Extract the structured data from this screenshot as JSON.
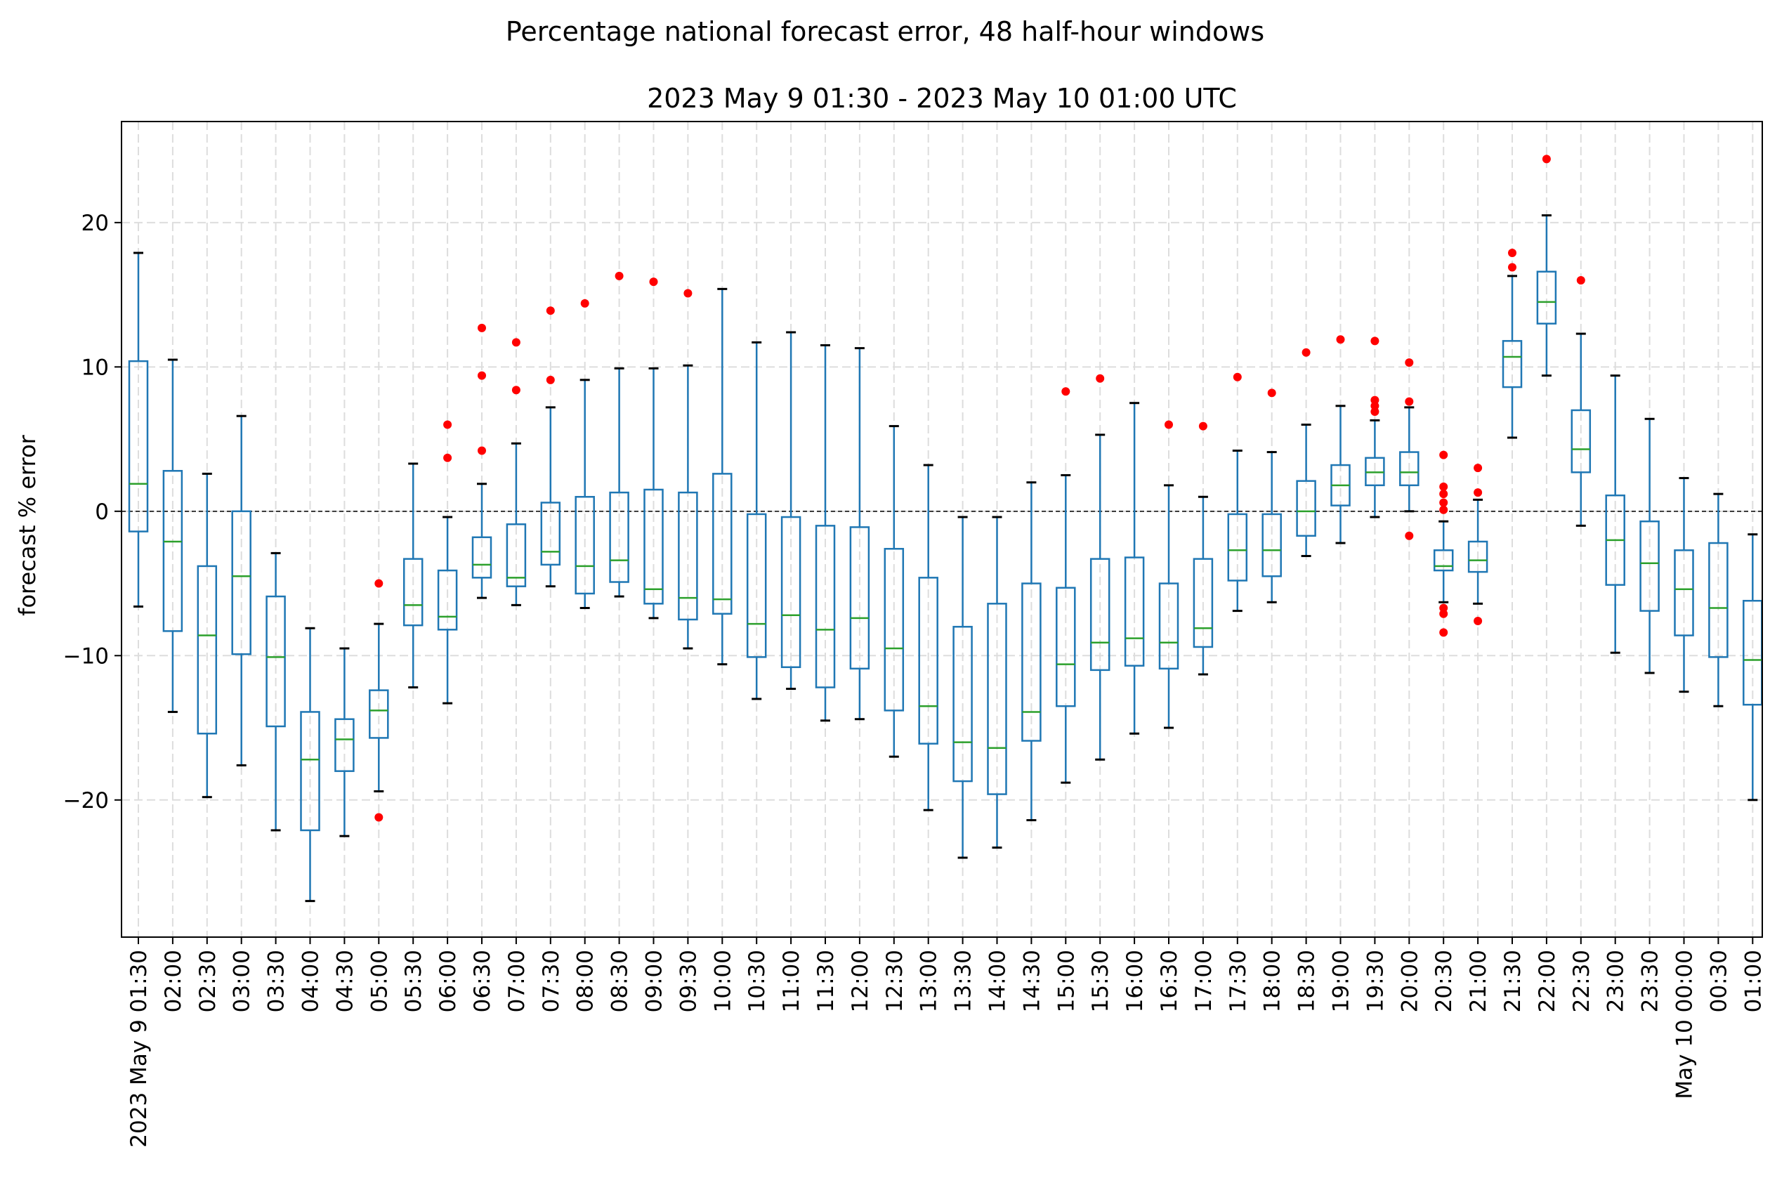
{
  "chart_data": {
    "type": "box",
    "suptitle": "Percentage national forecast error, 48 half-hour windows",
    "title": "2023 May 9 01:30 - 2023 May 10 01:00 UTC",
    "ylabel": "forecast % error",
    "xlabel": "",
    "ylim": [
      -29.5,
      27
    ],
    "yticks": [
      -20,
      -10,
      0,
      10,
      20
    ],
    "ytick_labels": [
      "−20",
      "−10",
      "0",
      "10",
      "20"
    ],
    "reference_line": 0,
    "grid": true,
    "colors": {
      "box": "#1f77b4",
      "median": "#2ca02c",
      "whisker_cap": "#000000",
      "outlier": "#ff0000",
      "grid": "#dddddd"
    },
    "categories": [
      "2023 May 9 01:30",
      "02:00",
      "02:30",
      "03:00",
      "03:30",
      "04:00",
      "04:30",
      "05:00",
      "05:30",
      "06:00",
      "06:30",
      "07:00",
      "07:30",
      "08:00",
      "08:30",
      "09:00",
      "09:30",
      "10:00",
      "10:30",
      "11:00",
      "11:30",
      "12:00",
      "12:30",
      "13:00",
      "13:30",
      "14:00",
      "14:30",
      "15:00",
      "15:30",
      "16:00",
      "16:30",
      "17:00",
      "17:30",
      "18:00",
      "18:30",
      "19:00",
      "19:30",
      "20:00",
      "20:30",
      "21:00",
      "21:30",
      "22:00",
      "22:30",
      "23:00",
      "23:30",
      "May 10 00:00",
      "00:30",
      "01:00"
    ],
    "boxes": [
      {
        "whislo": -6.6,
        "q1": -1.4,
        "med": 1.9,
        "q3": 10.4,
        "whishi": 17.9,
        "fliers": []
      },
      {
        "whislo": -13.9,
        "q1": -8.3,
        "med": -2.1,
        "q3": 2.8,
        "whishi": 10.5,
        "fliers": []
      },
      {
        "whislo": -19.8,
        "q1": -15.4,
        "med": -8.6,
        "q3": -3.8,
        "whishi": 2.6,
        "fliers": []
      },
      {
        "whislo": -17.6,
        "q1": -9.9,
        "med": -4.5,
        "q3": 0.0,
        "whishi": 6.6,
        "fliers": []
      },
      {
        "whislo": -22.1,
        "q1": -14.9,
        "med": -10.1,
        "q3": -5.9,
        "whishi": -2.9,
        "fliers": []
      },
      {
        "whislo": -27.0,
        "q1": -22.1,
        "med": -17.2,
        "q3": -13.9,
        "whishi": -8.1,
        "fliers": []
      },
      {
        "whislo": -22.5,
        "q1": -18.0,
        "med": -15.8,
        "q3": -14.4,
        "whishi": -9.5,
        "fliers": []
      },
      {
        "whislo": -19.4,
        "q1": -15.7,
        "med": -13.8,
        "q3": -12.4,
        "whishi": -7.8,
        "fliers": [
          -5.0,
          -21.2
        ]
      },
      {
        "whislo": -12.2,
        "q1": -7.9,
        "med": -6.5,
        "q3": -3.3,
        "whishi": 3.3,
        "fliers": []
      },
      {
        "whislo": -13.3,
        "q1": -8.2,
        "med": -7.3,
        "q3": -4.1,
        "whishi": -0.4,
        "fliers": [
          6.0,
          3.7
        ]
      },
      {
        "whislo": -6.0,
        "q1": -4.6,
        "med": -3.7,
        "q3": -1.8,
        "whishi": 1.9,
        "fliers": [
          12.7,
          9.4,
          4.2
        ]
      },
      {
        "whislo": -6.5,
        "q1": -5.2,
        "med": -4.6,
        "q3": -0.9,
        "whishi": 4.7,
        "fliers": [
          11.7,
          8.4
        ]
      },
      {
        "whislo": -5.2,
        "q1": -3.7,
        "med": -2.8,
        "q3": 0.6,
        "whishi": 7.2,
        "fliers": [
          13.9,
          9.1
        ]
      },
      {
        "whislo": -6.7,
        "q1": -5.7,
        "med": -3.8,
        "q3": 1.0,
        "whishi": 9.1,
        "fliers": [
          14.4
        ]
      },
      {
        "whislo": -5.9,
        "q1": -4.9,
        "med": -3.4,
        "q3": 1.3,
        "whishi": 9.9,
        "fliers": [
          16.3
        ]
      },
      {
        "whislo": -7.4,
        "q1": -6.4,
        "med": -5.4,
        "q3": 1.5,
        "whishi": 9.9,
        "fliers": [
          15.9
        ]
      },
      {
        "whislo": -9.5,
        "q1": -7.5,
        "med": -6.0,
        "q3": 1.3,
        "whishi": 10.1,
        "fliers": [
          15.1
        ]
      },
      {
        "whislo": -10.6,
        "q1": -7.1,
        "med": -6.1,
        "q3": 2.6,
        "whishi": 15.4,
        "fliers": []
      },
      {
        "whislo": -13.0,
        "q1": -10.1,
        "med": -7.8,
        "q3": -0.2,
        "whishi": 11.7,
        "fliers": []
      },
      {
        "whislo": -12.3,
        "q1": -10.8,
        "med": -7.2,
        "q3": -0.4,
        "whishi": 12.4,
        "fliers": []
      },
      {
        "whislo": -14.5,
        "q1": -12.2,
        "med": -8.2,
        "q3": -1.0,
        "whishi": 11.5,
        "fliers": []
      },
      {
        "whislo": -14.4,
        "q1": -10.9,
        "med": -7.4,
        "q3": -1.1,
        "whishi": 11.3,
        "fliers": []
      },
      {
        "whislo": -17.0,
        "q1": -13.8,
        "med": -9.5,
        "q3": -2.6,
        "whishi": 5.9,
        "fliers": []
      },
      {
        "whislo": -20.7,
        "q1": -16.1,
        "med": -13.5,
        "q3": -4.6,
        "whishi": 3.2,
        "fliers": []
      },
      {
        "whislo": -24.0,
        "q1": -18.7,
        "med": -16.0,
        "q3": -8.0,
        "whishi": -0.4,
        "fliers": []
      },
      {
        "whislo": -23.3,
        "q1": -19.6,
        "med": -16.4,
        "q3": -6.4,
        "whishi": -0.4,
        "fliers": []
      },
      {
        "whislo": -21.4,
        "q1": -15.9,
        "med": -13.9,
        "q3": -5.0,
        "whishi": 2.0,
        "fliers": []
      },
      {
        "whislo": -18.8,
        "q1": -13.5,
        "med": -10.6,
        "q3": -5.3,
        "whishi": 2.5,
        "fliers": [
          8.3
        ]
      },
      {
        "whislo": -17.2,
        "q1": -11.0,
        "med": -9.1,
        "q3": -3.3,
        "whishi": 5.3,
        "fliers": [
          9.2
        ]
      },
      {
        "whislo": -15.4,
        "q1": -10.7,
        "med": -8.8,
        "q3": -3.2,
        "whishi": 7.5,
        "fliers": []
      },
      {
        "whislo": -15.0,
        "q1": -10.9,
        "med": -9.1,
        "q3": -5.0,
        "whishi": 1.8,
        "fliers": [
          6.0
        ]
      },
      {
        "whislo": -11.3,
        "q1": -9.4,
        "med": -8.1,
        "q3": -3.3,
        "whishi": 1.0,
        "fliers": [
          5.9
        ]
      },
      {
        "whislo": -6.9,
        "q1": -4.8,
        "med": -2.7,
        "q3": -0.2,
        "whishi": 4.2,
        "fliers": [
          9.3
        ]
      },
      {
        "whislo": -6.3,
        "q1": -4.5,
        "med": -2.7,
        "q3": -0.2,
        "whishi": 4.1,
        "fliers": [
          8.2
        ]
      },
      {
        "whislo": -3.1,
        "q1": -1.7,
        "med": 0.0,
        "q3": 2.1,
        "whishi": 6.0,
        "fliers": [
          11.0
        ]
      },
      {
        "whislo": -2.2,
        "q1": 0.4,
        "med": 1.8,
        "q3": 3.2,
        "whishi": 7.3,
        "fliers": [
          11.9
        ]
      },
      {
        "whislo": -0.4,
        "q1": 1.8,
        "med": 2.7,
        "q3": 3.7,
        "whishi": 6.3,
        "fliers": [
          11.8,
          7.7,
          7.3,
          6.9
        ]
      },
      {
        "whislo": 0.0,
        "q1": 1.8,
        "med": 2.7,
        "q3": 4.1,
        "whishi": 7.2,
        "fliers": [
          10.3,
          7.6,
          -1.7
        ]
      },
      {
        "whislo": -6.3,
        "q1": -4.1,
        "med": -3.8,
        "q3": -2.7,
        "whishi": -0.7,
        "fliers": [
          3.9,
          1.7,
          1.2,
          0.6,
          0.1,
          -6.7,
          -7.1,
          -8.4
        ]
      },
      {
        "whislo": -6.4,
        "q1": -4.2,
        "med": -3.4,
        "q3": -2.1,
        "whishi": 0.8,
        "fliers": [
          3.0,
          1.3,
          -7.6
        ]
      },
      {
        "whislo": 5.1,
        "q1": 8.6,
        "med": 10.7,
        "q3": 11.8,
        "whishi": 16.3,
        "fliers": [
          17.9,
          16.9
        ]
      },
      {
        "whislo": 9.4,
        "q1": 13.0,
        "med": 14.5,
        "q3": 16.6,
        "whishi": 20.5,
        "fliers": [
          24.4
        ]
      },
      {
        "whislo": -1.0,
        "q1": 2.7,
        "med": 4.3,
        "q3": 7.0,
        "whishi": 12.3,
        "fliers": [
          16.0
        ]
      },
      {
        "whislo": -9.8,
        "q1": -5.1,
        "med": -2.0,
        "q3": 1.1,
        "whishi": 9.4,
        "fliers": []
      },
      {
        "whislo": -11.2,
        "q1": -6.9,
        "med": -3.6,
        "q3": -0.7,
        "whishi": 6.4,
        "fliers": []
      },
      {
        "whislo": -12.5,
        "q1": -8.6,
        "med": -5.4,
        "q3": -2.7,
        "whishi": 2.3,
        "fliers": []
      },
      {
        "whislo": -13.5,
        "q1": -10.1,
        "med": -6.7,
        "q3": -2.2,
        "whishi": 1.2,
        "fliers": []
      },
      {
        "whislo": -20.0,
        "q1": -13.4,
        "med": -10.3,
        "q3": -6.2,
        "whishi": -1.6,
        "fliers": []
      }
    ]
  }
}
